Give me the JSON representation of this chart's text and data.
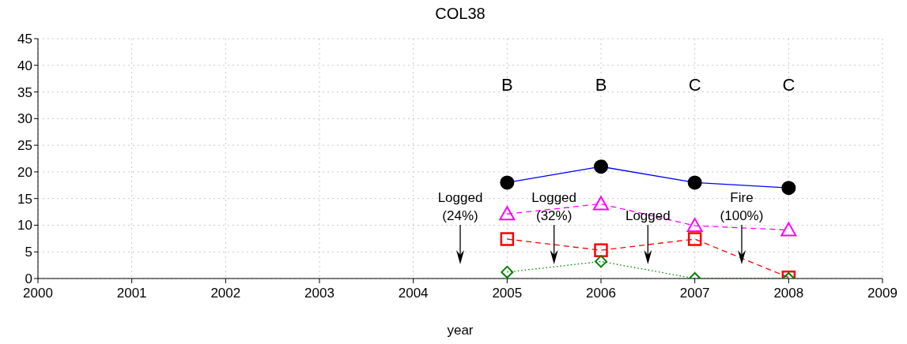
{
  "chart_data": {
    "type": "line",
    "title": "COL38",
    "xlabel": "year",
    "xlim": [
      2000,
      2009
    ],
    "xticks": [
      2000,
      2001,
      2002,
      2003,
      2004,
      2005,
      2006,
      2007,
      2008,
      2009
    ],
    "ylim": [
      0,
      45
    ],
    "yticks": [
      0,
      5,
      10,
      15,
      20,
      25,
      30,
      35,
      40,
      45
    ],
    "grid": true,
    "series": [
      {
        "x": [
          2005,
          2006,
          2007,
          2008
        ],
        "values": [
          18,
          21,
          18,
          17
        ],
        "color": "#0000ff",
        "colors": [
          "#000000",
          "#000000",
          "#000000",
          "#000000"
        ],
        "marker": "circle",
        "line_style": "solid"
      },
      {
        "x": [
          2005,
          2006,
          2007,
          2008
        ],
        "values": [
          12.1,
          14,
          9.9,
          9.1
        ],
        "color": "#ff00ff",
        "marker": "triangle",
        "line_style": "dashed"
      },
      {
        "x": [
          2005,
          2006,
          2007,
          2008
        ],
        "values": [
          7.4,
          5.3,
          7.4,
          0.2
        ],
        "color": "#ff0000",
        "marker": "square",
        "line_style": "dashed"
      },
      {
        "x": [
          2005,
          2006,
          2007,
          2008
        ],
        "values": [
          1.2,
          3.2,
          0,
          0
        ],
        "color": "#008000",
        "marker": "diamond",
        "line_style": "dotted"
      }
    ],
    "annotations": [
      "B",
      "B",
      "C",
      "C"
    ],
    "ref_lines": [
      {
        "axis": "x",
        "value": 2004.5,
        "label": "Logged (24%)"
      },
      {
        "axis": "x",
        "value": 2005.5,
        "label": "Logged (32%)"
      },
      {
        "axis": "x",
        "value": 2006.5,
        "label": "Logged"
      },
      {
        "axis": "x",
        "value": 2007.5,
        "label": "Fire (100%)"
      }
    ]
  }
}
